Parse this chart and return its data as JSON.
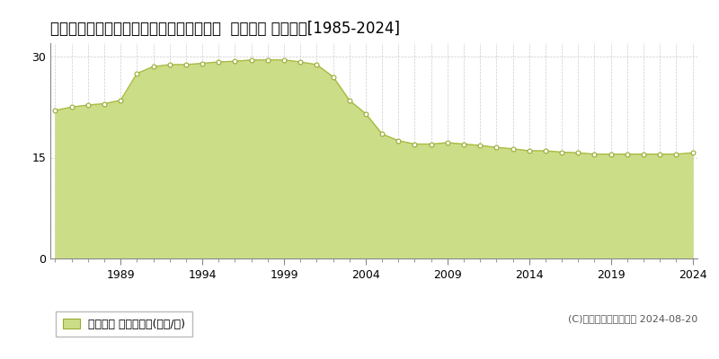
{
  "title": "岡山県玉野市田井４丁目５３３１番１０外  地価公示 地価推移[1985-2024]",
  "years": [
    1985,
    1986,
    1987,
    1988,
    1989,
    1990,
    1991,
    1992,
    1993,
    1994,
    1995,
    1996,
    1997,
    1998,
    1999,
    2000,
    2001,
    2002,
    2003,
    2004,
    2005,
    2006,
    2007,
    2008,
    2009,
    2010,
    2011,
    2012,
    2013,
    2014,
    2015,
    2016,
    2017,
    2018,
    2019,
    2020,
    2021,
    2022,
    2023,
    2024
  ],
  "values": [
    22.0,
    22.5,
    22.8,
    23.0,
    23.5,
    27.5,
    28.5,
    28.8,
    28.8,
    29.0,
    29.2,
    29.3,
    29.5,
    29.5,
    29.5,
    29.2,
    28.8,
    27.0,
    23.5,
    21.5,
    18.5,
    17.5,
    17.0,
    17.0,
    17.2,
    17.0,
    16.8,
    16.5,
    16.3,
    16.0,
    16.0,
    15.8,
    15.7,
    15.5,
    15.5,
    15.5,
    15.5,
    15.5,
    15.5,
    15.7
  ],
  "fill_color": "#ccdd88",
  "line_color": "#aabb44",
  "marker_facecolor": "#ffffff",
  "marker_edgecolor": "#99aa33",
  "background_color": "#ffffff",
  "grid_color": "#cccccc",
  "ylim": [
    0,
    32
  ],
  "yticks": [
    0,
    15,
    30
  ],
  "xtick_major": [
    1989,
    1994,
    1999,
    2004,
    2009,
    2014,
    2019,
    2024
  ],
  "legend_label": "地価公示 平均坪単価(万円/坪)",
  "legend_color": "#ccdd88",
  "legend_edge_color": "#99aa33",
  "copyright_text": "(C)土地価格ドットコム 2024-08-20",
  "title_fontsize": 12,
  "tick_fontsize": 9,
  "legend_fontsize": 9,
  "copyright_fontsize": 8
}
